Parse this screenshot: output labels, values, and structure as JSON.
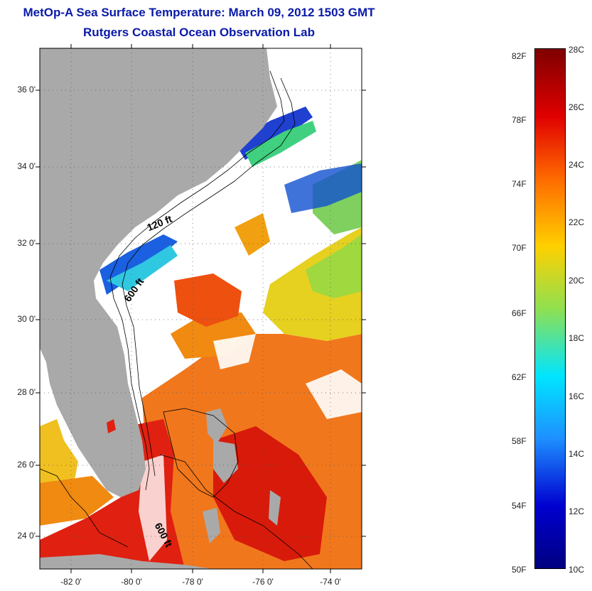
{
  "header": {
    "title": "MetOp-A Sea Surface Temperature:  March 09, 2012 1503 GMT",
    "subtitle": "Rutgers Coastal Ocean Observation Lab"
  },
  "map": {
    "lat_ticks": [
      "36 0'",
      "34 0'",
      "32 0'",
      "30 0'",
      "28 0'",
      "26 0'",
      "24 0'"
    ],
    "lon_ticks": [
      "-82 0'",
      "-80 0'",
      "-78 0'",
      "-76 0'",
      "-74 0'"
    ],
    "depth_contours": [
      "120 ft",
      "600 ft",
      "600 ft"
    ],
    "land_color": "#a9a9a9",
    "no_data_color": "#ffffff"
  },
  "colorbar": {
    "fahrenheit_labels": [
      "82F",
      "78F",
      "74F",
      "70F",
      "66F",
      "62F",
      "58F",
      "54F",
      "50F"
    ],
    "celsius_labels": [
      "28C",
      "26C",
      "24C",
      "22C",
      "20C",
      "18C",
      "16C",
      "14C",
      "12C",
      "10C"
    ],
    "colors": [
      "#7f0000",
      "#e00000",
      "#ff6a00",
      "#ffd000",
      "#90e050",
      "#00e5ff",
      "#1e90ff",
      "#0000d0",
      "#000080"
    ]
  }
}
